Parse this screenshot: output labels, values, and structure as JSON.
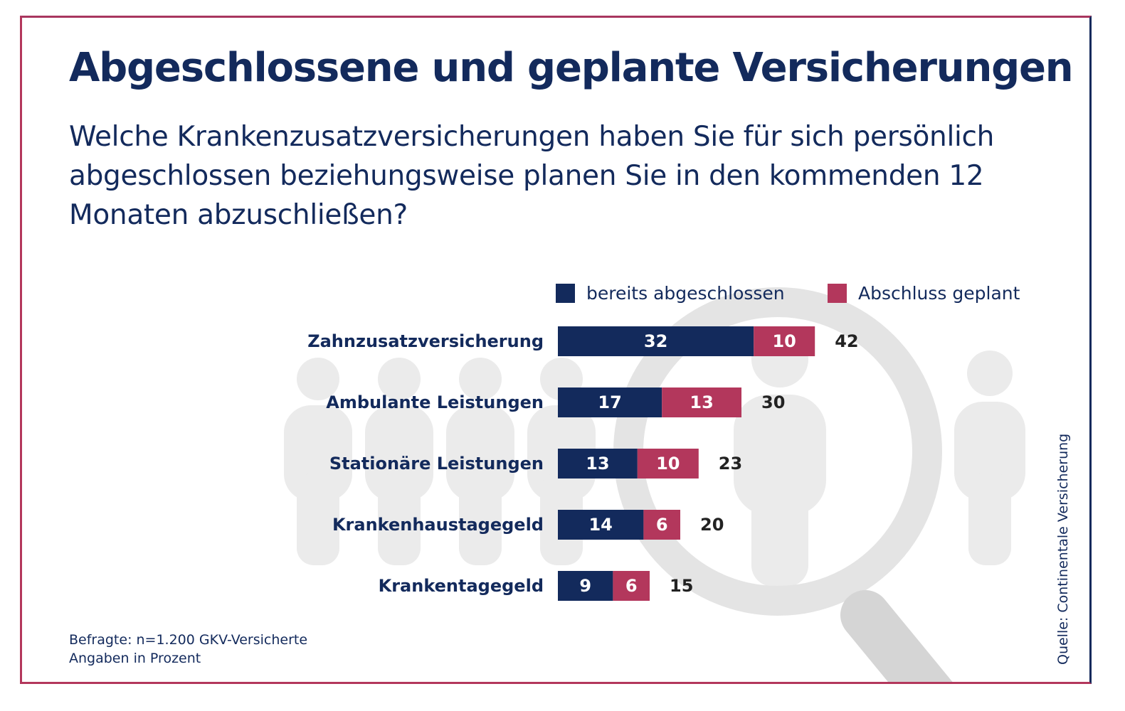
{
  "title": "Abgeschlossene und geplante Versicherungen",
  "subtitle": "Welche Krankenzusatzversicherungen haben Sie für sich persönlich abgeschlossen beziehungsweise planen Sie in den kommenden 12 Monaten abzuschließen?",
  "footnote": {
    "line1": "Befragte: n=1.200 GKV-Versicherte",
    "line2": "Angaben in Prozent"
  },
  "source": "Quelle: Continentale Versicherung",
  "colors": {
    "navy": "#132a5c",
    "crimson": "#b3375c",
    "background_figures": "#ebebeb"
  },
  "chart_data": {
    "type": "bar",
    "orientation": "horizontal",
    "stacked": true,
    "categories": [
      "Zahnzusatzversicherung",
      "Ambulante Leistungen",
      "Stationäre Leistungen",
      "Krankenhaustagegeld",
      "Krankentagegeld"
    ],
    "series": [
      {
        "name": "bereits abgeschlossen",
        "color": "#132a5c",
        "values": [
          32,
          17,
          13,
          14,
          9
        ]
      },
      {
        "name": "Abschluss geplant",
        "color": "#b3375c",
        "values": [
          10,
          13,
          10,
          6,
          6
        ]
      }
    ],
    "totals": [
      42,
      30,
      23,
      20,
      15
    ],
    "title": "",
    "xlabel": "",
    "ylabel": "",
    "xlim": [
      0,
      42
    ],
    "legend": "top-right",
    "grid": false
  }
}
